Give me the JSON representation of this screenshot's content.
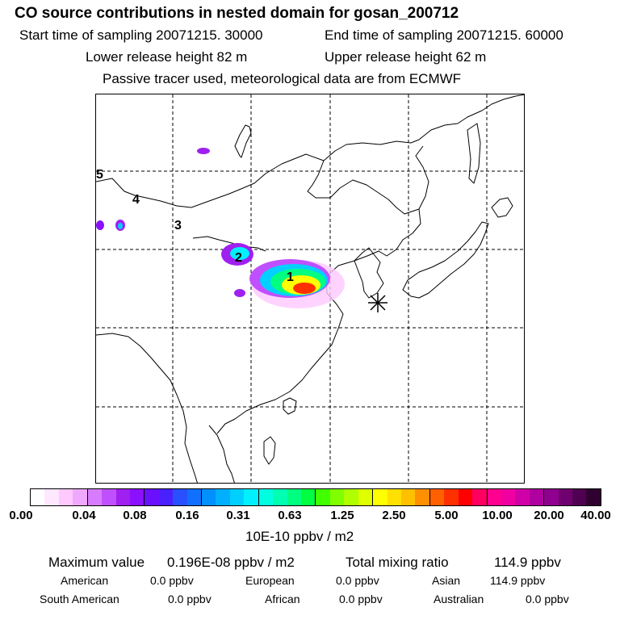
{
  "header": {
    "title": "CO  source contributions in nested domain for gosan_200712",
    "start_label": "Start time of sampling 20071215. 30000",
    "end_label": "End time of sampling 20071215. 60000",
    "lower_label": "Lower release height   82 m",
    "upper_label": "Upper release height   62 m",
    "note": "Passive tracer used, meteorological data are from ECMWF"
  },
  "map": {
    "markers": [
      "1",
      "2",
      "3",
      "4",
      "5"
    ],
    "receptor_symbol": "star-marker"
  },
  "colorbar": {
    "ticks": [
      "0.00",
      "0.04",
      "0.08",
      "0.16",
      "0.31",
      "0.63",
      "1.25",
      "2.50",
      "5.00",
      "10.00",
      "20.00",
      "40.00"
    ],
    "unit": "10E-10 ppbv / m2",
    "colors": [
      "#ffffff",
      "#ffe8ff",
      "#ffc8ff",
      "#f0a8ff",
      "#d87cff",
      "#c050ff",
      "#a020f0",
      "#8a10ff",
      "#6a10ff",
      "#4a20ff",
      "#2850ff",
      "#1070ff",
      "#0090ff",
      "#00b0ff",
      "#00d0ff",
      "#00f0ff",
      "#00ffe0",
      "#00ffb0",
      "#00ff80",
      "#00ff40",
      "#40ff00",
      "#80ff00",
      "#b0ff00",
      "#e0ff00",
      "#ffff00",
      "#ffe000",
      "#ffc000",
      "#ff9000",
      "#ff6000",
      "#ff3000",
      "#ff0000",
      "#ff0060",
      "#ff0090",
      "#f000a0",
      "#d000a8",
      "#b000a0",
      "#900090",
      "#700070",
      "#500050",
      "#300030"
    ]
  },
  "stats": {
    "max_label": "Maximum value",
    "max_value": "0.196E-08 ppbv / m2",
    "total_label": "Total mixing ratio",
    "total_value": "114.9 ppbv",
    "regions": [
      {
        "name": "American",
        "value": "0.0 ppbv"
      },
      {
        "name": "European",
        "value": "0.0 ppbv"
      },
      {
        "name": "Asian",
        "value": "114.9 ppbv"
      },
      {
        "name": "South American",
        "value": "0.0 ppbv"
      },
      {
        "name": "African",
        "value": "0.0 ppbv"
      },
      {
        "name": "Australian",
        "value": "0.0 ppbv"
      }
    ]
  }
}
